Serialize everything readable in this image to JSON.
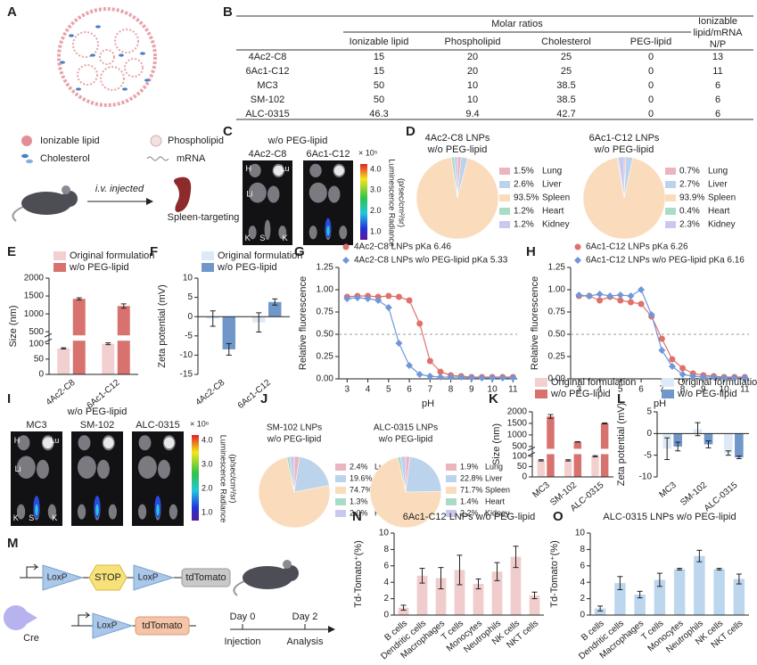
{
  "panel_labels": [
    "A",
    "B",
    "C",
    "D",
    "E",
    "F",
    "G",
    "H",
    "I",
    "J",
    "K",
    "L",
    "M",
    "N",
    "O"
  ],
  "panel_a": {
    "legend": [
      "Ionizable lipid",
      "Phospholipid",
      "Cholesterol",
      "mRNA"
    ],
    "route": "i.v. injected",
    "outcome": "Spleen-targeting"
  },
  "table": {
    "group_header": "Molar ratios",
    "columns": [
      "Ionizable lipid",
      "Phospholipid",
      "Cholesterol",
      "PEG-lipid"
    ],
    "np_header": [
      "Ionizable",
      "lipid/mRNA",
      "N/P"
    ],
    "rows": [
      [
        "4Ac2-C8",
        15,
        20,
        25,
        0,
        13
      ],
      [
        "6Ac1-C12",
        15,
        20,
        25,
        0,
        11
      ],
      [
        "MC3",
        50,
        10,
        38.5,
        0,
        6
      ],
      [
        "SM-102",
        50,
        10,
        38.5,
        0,
        6
      ],
      [
        "ALC-0315",
        46.3,
        9.4,
        42.7,
        0,
        6
      ]
    ]
  },
  "imaging_c": {
    "title": "w/o PEG-lipid",
    "samples": [
      "4Ac2-C8",
      "6Ac1-C12"
    ],
    "organs": [
      "H",
      "Lu",
      "Li",
      "K",
      "S",
      "K"
    ],
    "scale_unit": "× 10⁵",
    "scale_ticks": [
      "4.0",
      "3.0",
      "2.0",
      "1.0"
    ],
    "scale_label": [
      "Luminescence Radiance",
      "(p/sec/cm²/sr)"
    ]
  },
  "imaging_i": {
    "title": "w/o PEG-lipid",
    "samples": [
      "MC3",
      "SM-102",
      "ALC-0315"
    ],
    "organs": [
      "H",
      "Lu",
      "Li",
      "K",
      "S",
      "K"
    ],
    "scale_unit": "× 10⁶",
    "scale_ticks": [
      "4.0",
      "3.0",
      "2.0",
      "1.0"
    ],
    "scale_label": [
      "Luminescence Radiance",
      "(p/sec/cm²/sr)"
    ]
  },
  "diagram_m": {
    "reporter": [
      "LoxP",
      "STOP",
      "LoxP",
      "tdTomato"
    ],
    "enzyme": "Cre",
    "recombined": [
      "LoxP",
      "tdTomato"
    ],
    "timeline": [
      "Day 0",
      "Day 2"
    ],
    "events": [
      "Injection",
      "Analysis"
    ]
  },
  "chart_data": [
    {
      "type": "pie",
      "title": "4Ac2-C8 LNPs",
      "subtitle": "w/o PEG-lipid",
      "categories": [
        "Lung",
        "Liver",
        "Spleen",
        "Heart",
        "Kidney"
      ],
      "values": [
        1.5,
        2.6,
        93.5,
        1.2,
        1.2
      ],
      "value_labels": [
        "1.5%",
        "2.6%",
        "93.5%",
        "1.2%",
        "1.2%"
      ],
      "colors": [
        "#eab5bd",
        "#bcd3ec",
        "#fadcbd",
        "#a9dcc6",
        "#c9c8f1"
      ]
    },
    {
      "type": "pie",
      "title": "6Ac1-C12 LNPs",
      "subtitle": "w/o PEG-lipid",
      "categories": [
        "Lung",
        "Liver",
        "Spleen",
        "Heart",
        "Kidney"
      ],
      "values": [
        0.7,
        2.7,
        93.9,
        0.4,
        2.3
      ],
      "value_labels": [
        "0.7%",
        "2.7%",
        "93.9%",
        "0.4%",
        "2.3%"
      ],
      "colors": [
        "#eab5bd",
        "#bcd3ec",
        "#fadcbd",
        "#a9dcc6",
        "#c9c8f1"
      ]
    },
    {
      "type": "bar",
      "categories": [
        "4Ac2-C8",
        "6Ac1-C12"
      ],
      "series": [
        {
          "name": "Original formulation",
          "color": "#f3d0d0",
          "values": [
            85,
            100
          ],
          "errors": [
            2,
            3
          ]
        },
        {
          "name": "w/o PEG-lipid",
          "color": "#d8726e",
          "values": [
            1420,
            1220
          ],
          "errors": [
            30,
            60
          ]
        }
      ],
      "ylim": [
        0,
        2000
      ],
      "ybreak": [
        110,
        400
      ],
      "yticks": [
        0,
        50,
        100,
        500,
        1000,
        1500,
        2000
      ],
      "ylabel": "Size (nm)",
      "legend": "top"
    },
    {
      "type": "bar",
      "categories": [
        "4Ac2-C8",
        "6Ac1-C12"
      ],
      "series": [
        {
          "name": "Original formulation",
          "color": "#dde9f7",
          "values": [
            -0.5,
            -1.5
          ],
          "errors": [
            2,
            2.5
          ]
        },
        {
          "name": "w/o PEG-lipid",
          "color": "#6f97c9",
          "values": [
            -8.5,
            3.8
          ],
          "errors": [
            1.5,
            0.8
          ]
        }
      ],
      "ylim": [
        -15,
        10
      ],
      "yticks": [
        -15,
        -10,
        -5,
        0,
        5,
        10
      ],
      "ylabel": "Zeta potential (mV)",
      "legend": "top"
    },
    {
      "type": "scatter",
      "x": [
        3,
        3.5,
        4,
        4.5,
        5,
        5.5,
        6,
        6.5,
        7,
        7.5,
        8,
        8.5,
        9,
        9.5,
        10,
        10.5,
        11
      ],
      "series": [
        {
          "name": "4Ac2-C8 LNPs  pKa 6.46",
          "color": "#e0706a",
          "marker": "circle",
          "values": [
            0.92,
            0.93,
            0.93,
            0.92,
            0.93,
            0.92,
            0.88,
            0.62,
            0.2,
            0.08,
            0.04,
            0.03,
            0.02,
            0.02,
            0.02,
            0.02,
            0.02
          ]
        },
        {
          "name": "4Ac2-C8 LNPs w/o PEG-lipid  pKa 5.33",
          "color": "#6f97d9",
          "marker": "diamond",
          "values": [
            0.9,
            0.91,
            0.9,
            0.88,
            0.8,
            0.4,
            0.15,
            0.05,
            0.03,
            0.02,
            0.02,
            0.02,
            0.01,
            0.01,
            0.01,
            0.01,
            0.01
          ]
        }
      ],
      "xlim": [
        2.6,
        11.2
      ],
      "xticks": [
        3,
        4,
        5,
        6,
        7,
        8,
        9,
        10,
        11
      ],
      "ylim": [
        0,
        1.25
      ],
      "yticks": [
        {
          "value": 0,
          "label": "0.00"
        },
        {
          "value": 0.25,
          "label": "0.25"
        },
        {
          "value": 0.5,
          "label": "0.50"
        },
        {
          "value": 0.75,
          "label": "0.75"
        },
        {
          "value": 1,
          "label": "1.00"
        },
        {
          "value": 1.25,
          "label": "1.25"
        }
      ],
      "hline": 0.5,
      "xlabel": "pH",
      "ylabel": "Relative fluorescence",
      "legend": "top"
    },
    {
      "type": "scatter",
      "x": [
        3,
        3.5,
        4,
        4.5,
        5,
        5.5,
        6,
        6.5,
        7,
        7.5,
        8,
        8.5,
        9,
        9.5,
        10,
        10.5,
        11
      ],
      "series": [
        {
          "name": "6Ac1-C12 LNPs  pKa 6.26",
          "color": "#e0706a",
          "marker": "circle",
          "values": [
            0.93,
            0.93,
            0.88,
            0.92,
            0.88,
            0.86,
            0.84,
            0.7,
            0.45,
            0.22,
            0.12,
            0.06,
            0.04,
            0.03,
            0.02,
            0.02,
            0.02
          ]
        },
        {
          "name": "6Ac1-C12 LNPs w/o PEG-lipid  pKa 6.16",
          "color": "#6f97d9",
          "marker": "diamond",
          "values": [
            0.94,
            0.93,
            0.95,
            0.93,
            0.94,
            0.93,
            1.0,
            0.72,
            0.32,
            0.14,
            0.05,
            0.03,
            0.02,
            0.02,
            0.01,
            0.01,
            0.01
          ]
        }
      ],
      "xlim": [
        2.6,
        11.2
      ],
      "xticks": [
        3,
        4,
        5,
        6,
        7,
        8,
        9,
        10,
        11
      ],
      "ylim": [
        0,
        1.25
      ],
      "yticks": [
        {
          "value": 0,
          "label": "0.00"
        },
        {
          "value": 0.25,
          "label": "0.25"
        },
        {
          "value": 0.5,
          "label": "0.50"
        },
        {
          "value": 0.75,
          "label": "0.75"
        },
        {
          "value": 1,
          "label": "1.00"
        },
        {
          "value": 1.25,
          "label": "1.25"
        }
      ],
      "hline": 0.5,
      "xlabel": "pH",
      "ylabel": "Relative fluorescence",
      "legend": "top"
    },
    {
      "type": "pie",
      "title": "SM-102 LNPs",
      "subtitle": "w/o PEG-lipid",
      "categories": [
        "Lung",
        "Liver",
        "Spleen",
        "Heart",
        "Kidney"
      ],
      "values": [
        2.4,
        19.6,
        74.7,
        1.3,
        2.0
      ],
      "value_labels": [
        "2.4%",
        "19.6%",
        "74.7%",
        "1.3%",
        "2.0%"
      ],
      "colors": [
        "#eab5bd",
        "#bcd3ec",
        "#fadcbd",
        "#a9dcc6",
        "#c9c8f1"
      ]
    },
    {
      "type": "pie",
      "title": "ALC-0315 LNPs",
      "subtitle": "w/o PEG-lipid",
      "categories": [
        "Lung",
        "Liver",
        "Spleen",
        "Heart",
        "Kidney"
      ],
      "values": [
        1.9,
        22.8,
        71.7,
        1.4,
        2.2
      ],
      "value_labels": [
        "1.9%",
        "22.8%",
        "71.7%",
        "1.4%",
        "2.2%"
      ],
      "colors": [
        "#eab5bd",
        "#bcd3ec",
        "#fadcbd",
        "#a9dcc6",
        "#c9c8f1"
      ]
    },
    {
      "type": "bar",
      "categories": [
        "MC3",
        "SM-102",
        "ALC-0315"
      ],
      "series": [
        {
          "name": "Original formulation",
          "color": "#f3d0d0",
          "values": [
            80,
            80,
            100
          ],
          "errors": [
            3,
            3,
            3
          ]
        },
        {
          "name": "w/o PEG-lipid",
          "color": "#d8726e",
          "values": [
            1800,
            700,
            1500
          ],
          "errors": [
            80,
            10,
            20
          ]
        }
      ],
      "ylim": [
        0,
        2000
      ],
      "ybreak": [
        110,
        400
      ],
      "yticks": [
        0,
        50,
        100,
        500,
        1000,
        1500,
        2000
      ],
      "ylabel": "Size (nm)",
      "legend": "top"
    },
    {
      "type": "bar",
      "categories": [
        "MC3",
        "SM-102",
        "ALC-0315"
      ],
      "series": [
        {
          "name": "Original formulation",
          "color": "#dde9f7",
          "values": [
            -3.5,
            1,
            -4.5
          ],
          "errors": [
            2.5,
            1.5,
            0.5
          ]
        },
        {
          "name": "w/o PEG-lipid",
          "color": "#6f97c9",
          "values": [
            -3,
            -2.5,
            -5.5
          ],
          "errors": [
            1,
            0.8,
            0.3
          ]
        }
      ],
      "ylim": [
        -10,
        5
      ],
      "yticks": [
        -10,
        -5,
        0,
        5
      ],
      "ylabel": "Zeta potential (mV)",
      "legend": "top"
    },
    {
      "type": "bar",
      "title": "6Ac1-C12 LNPs w/o PEG-lipid",
      "categories": [
        "B cells",
        "Dendritic cells",
        "Macrophages",
        "T cells",
        "Monocytes",
        "Neutrophils",
        "NK cells",
        "NKT cells"
      ],
      "values": [
        0.9,
        4.8,
        4.5,
        5.5,
        3.8,
        5.3,
        7.1,
        2.4
      ],
      "errors": [
        0.3,
        0.9,
        1.3,
        1.8,
        0.6,
        1.1,
        1.3,
        0.4
      ],
      "color": "#f0cccc",
      "ylim": [
        0,
        10
      ],
      "yticks": [
        0,
        2,
        4,
        6,
        8,
        10
      ],
      "ylabel": "Td-Tomato⁺(%)"
    },
    {
      "type": "bar",
      "title": "ALC-0315 LNPs w/o PEG-lipid",
      "categories": [
        "B cells",
        "Dendritic cells",
        "Macrophages",
        "T cells",
        "Monocytes",
        "Neutrophils",
        "NK cells",
        "NKT cells"
      ],
      "values": [
        0.8,
        3.9,
        2.5,
        4.3,
        5.6,
        7.2,
        5.6,
        4.4
      ],
      "errors": [
        0.3,
        0.8,
        0.4,
        0.8,
        0.1,
        0.7,
        0.1,
        0.6
      ],
      "color": "#bcd6ee",
      "ylim": [
        0,
        10
      ],
      "yticks": [
        0,
        2,
        4,
        6,
        8,
        10
      ],
      "ylabel": "Td-Tomato⁺(%)"
    }
  ]
}
